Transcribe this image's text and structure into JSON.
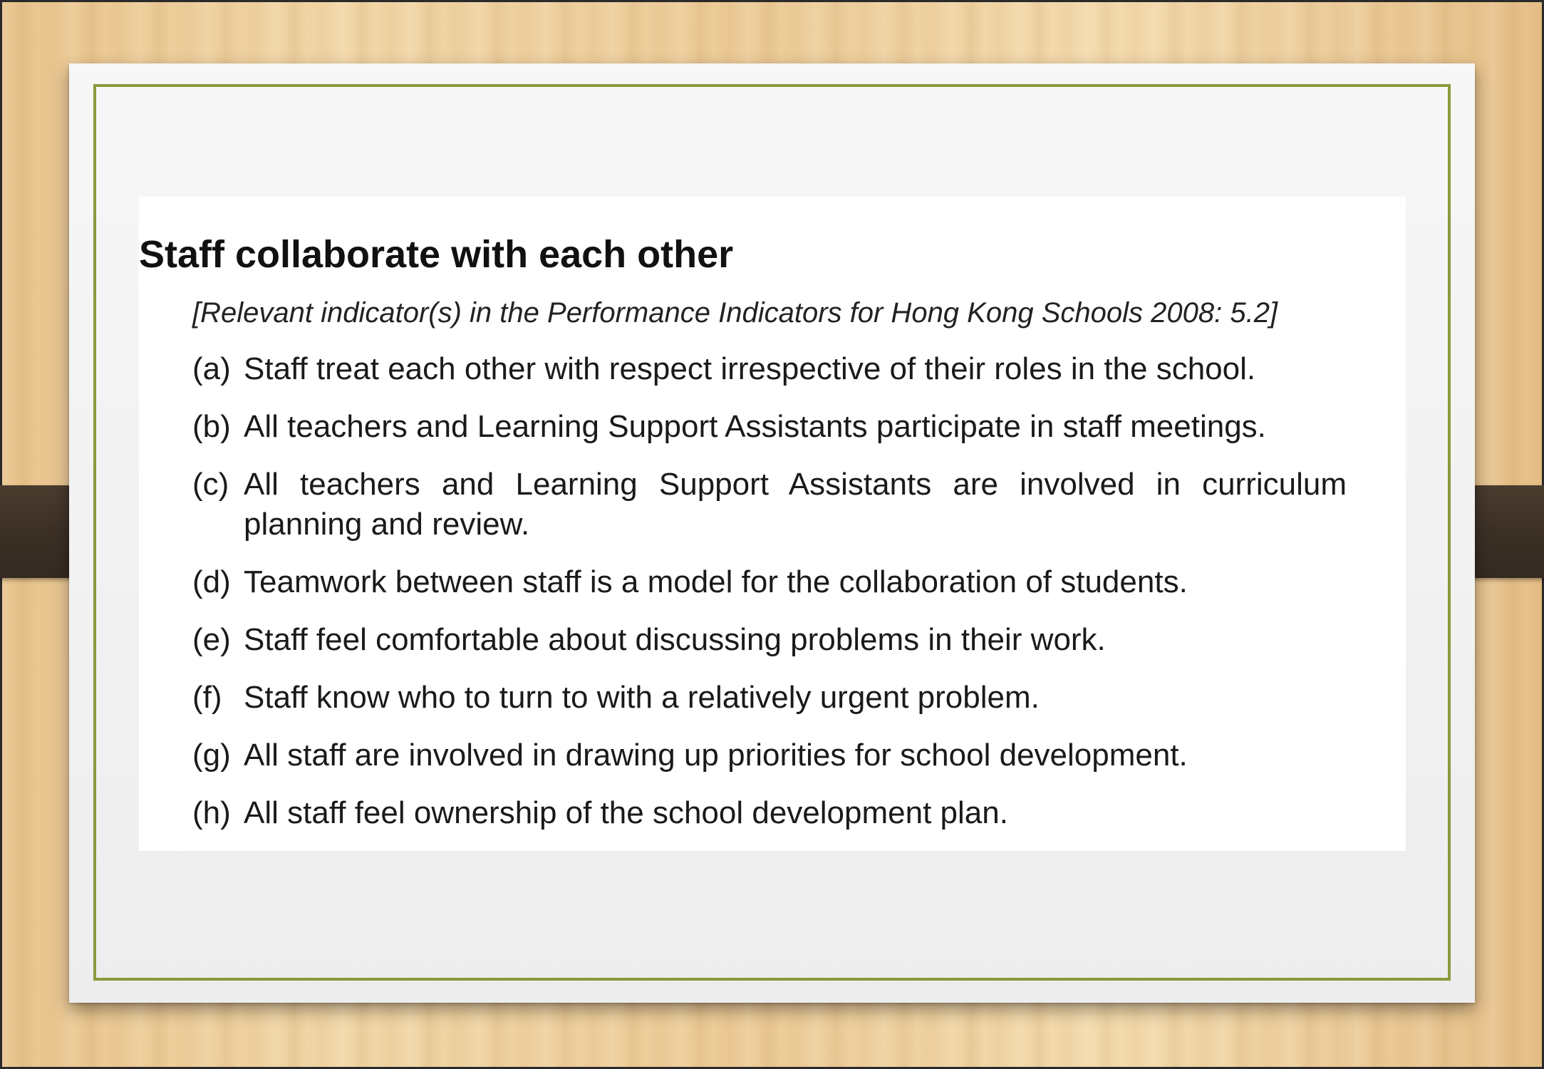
{
  "slide": {
    "title": "Staff collaborate with each other",
    "subtitle": "[Relevant indicator(s) in the Performance Indicators for Hong Kong Schools 2008: 5.2]",
    "items": [
      {
        "marker": "(a)",
        "text": "Staff treat each other with respect irrespective of their roles in the school."
      },
      {
        "marker": "(b)",
        "text": "All teachers and Learning Support Assistants participate in staff meetings."
      },
      {
        "marker": "(c)",
        "text": "All teachers and Learning Support Assistants are involved in curriculum planning and review."
      },
      {
        "marker": "(d)",
        "text": "Teamwork between staff is a model for the collaboration of students."
      },
      {
        "marker": "(e)",
        "text": "Staff feel comfortable about discussing problems in their work."
      },
      {
        "marker": "(f)",
        "text": "Staff know who to turn to with a relatively urgent problem."
      },
      {
        "marker": "(g)",
        "text": "All staff are involved in drawing up priorities for school development."
      },
      {
        "marker": "(h)",
        "text": "All staff feel ownership of the school development plan."
      }
    ]
  },
  "colors": {
    "frame_border": "#8a9a3c",
    "background_wood": "#e8c48d",
    "strap": "#3c3026"
  }
}
